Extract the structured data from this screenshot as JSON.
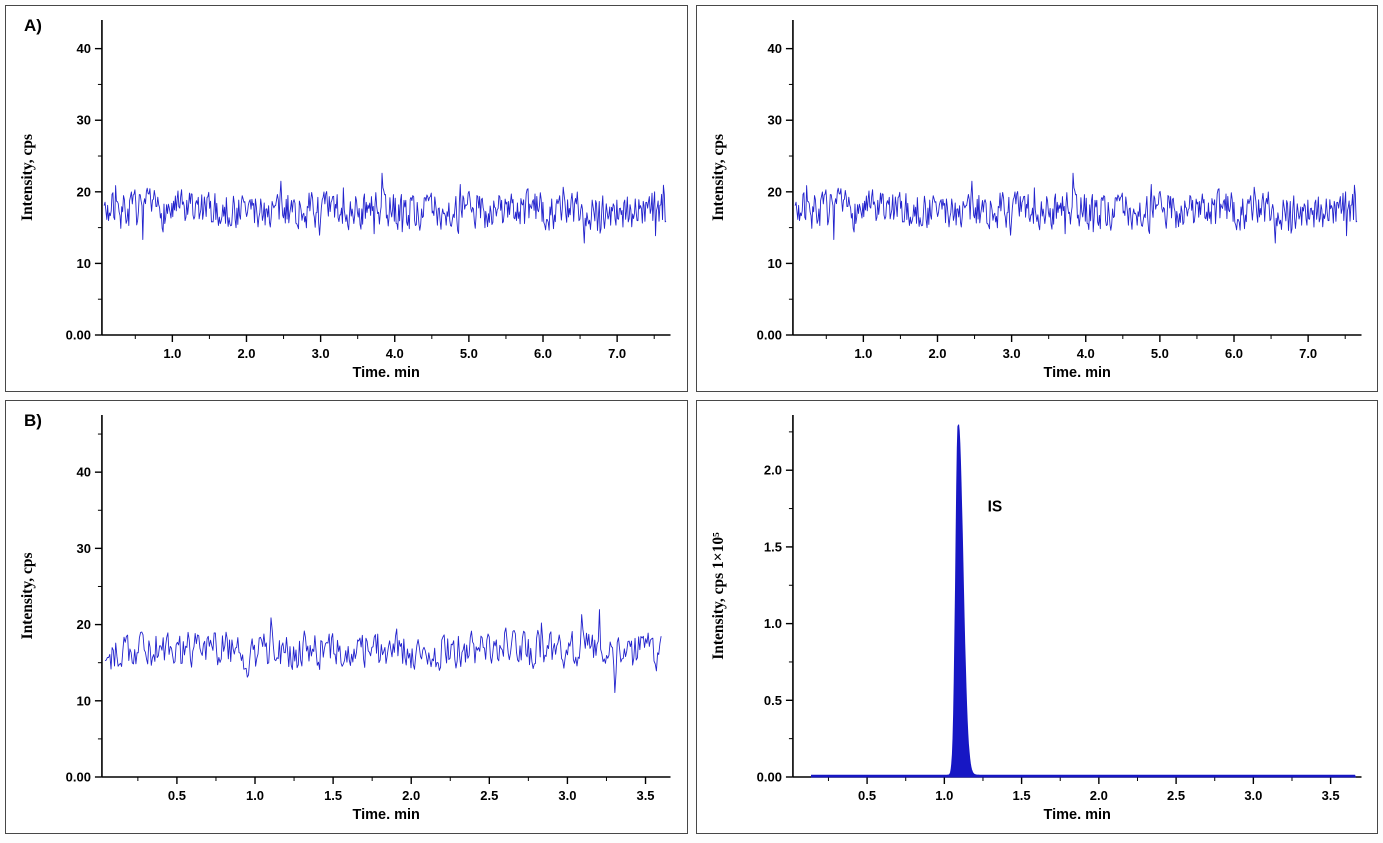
{
  "figure": {
    "description_labels": {
      "panel_a": "A)",
      "panel_b": "B)"
    }
  },
  "chart_data": [
    {
      "id": "blank-chromatogram-a-left",
      "type": "line",
      "panel_label": "A)",
      "xlabel": "Time. min",
      "ylabel": "Intensity, cps",
      "xlim": [
        0.05,
        7.72
      ],
      "ylim": [
        0,
        44
      ],
      "xticks": [
        1,
        2,
        3,
        4,
        5,
        6,
        7
      ],
      "xtick_labels": [
        "1.0",
        "2.0",
        "3.0",
        "4.0",
        "5.0",
        "6.0",
        "7.0"
      ],
      "yticks": [
        0,
        10,
        20,
        30,
        40
      ],
      "ytick_labels": [
        "0.00",
        "10",
        "20",
        "30",
        "40"
      ],
      "grid": false,
      "legend": "none",
      "line_color": "#2323cd",
      "axis_color": "#000000",
      "noise": {
        "seed": 7,
        "points": 640,
        "x_start": 0.08,
        "x_end": 7.66,
        "mean": 17.4,
        "amplitude": 3.4,
        "spike_chance": 0.08,
        "spike_scale": 9,
        "min": 9.3,
        "max": 27.2
      }
    },
    {
      "id": "blank-chromatogram-a-right",
      "type": "line",
      "panel_label": "",
      "xlabel": "Time. min",
      "ylabel": "Intensity, cps",
      "xlim": [
        0.05,
        7.72
      ],
      "ylim": [
        0,
        44
      ],
      "xticks": [
        1,
        2,
        3,
        4,
        5,
        6,
        7
      ],
      "xtick_labels": [
        "1.0",
        "2.0",
        "3.0",
        "4.0",
        "5.0",
        "6.0",
        "7.0"
      ],
      "yticks": [
        0,
        10,
        20,
        30,
        40
      ],
      "ytick_labels": [
        "0.00",
        "10",
        "20",
        "30",
        "40"
      ],
      "grid": false,
      "legend": "none",
      "line_color": "#2323cd",
      "axis_color": "#000000",
      "noise": {
        "seed": 7,
        "points": 640,
        "x_start": 0.08,
        "x_end": 7.66,
        "mean": 17.4,
        "amplitude": 3.4,
        "spike_chance": 0.08,
        "spike_scale": 9,
        "min": 9.3,
        "max": 27.2
      }
    },
    {
      "id": "blank-chromatogram-b-left",
      "type": "line",
      "panel_label": "B)",
      "xlabel": "Time. min",
      "ylabel": "Intensity, cps",
      "xlim": [
        0.02,
        3.66
      ],
      "ylim": [
        0,
        47.5
      ],
      "xticks": [
        0.5,
        1,
        1.5,
        2,
        2.5,
        3,
        3.5
      ],
      "xtick_labels": [
        "0.5",
        "1.0",
        "1.5",
        "2.0",
        "2.5",
        "3.0",
        "3.5"
      ],
      "yticks": [
        0,
        10,
        20,
        30,
        40
      ],
      "ytick_labels": [
        "0.00",
        "10",
        "20",
        "30",
        "40"
      ],
      "grid": false,
      "legend": "none",
      "line_color": "#2323cd",
      "axis_color": "#000000",
      "noise": {
        "seed": 29,
        "points": 470,
        "x_start": 0.04,
        "x_end": 3.6,
        "mean": 16.6,
        "amplitude": 3.3,
        "spike_chance": 0.08,
        "spike_scale": 9,
        "min": 8.8,
        "max": 26.5
      }
    },
    {
      "id": "internal-standard-peak",
      "type": "area",
      "panel_label": "",
      "xlabel": "Time. min",
      "ylabel": "Intensity, cps 1×10⁵",
      "xlim": [
        0.02,
        3.7
      ],
      "ylim": [
        0,
        2.36
      ],
      "xticks": [
        0.5,
        1,
        1.5,
        2,
        2.5,
        3,
        3.5
      ],
      "xtick_labels": [
        "0.5",
        "1.0",
        "1.5",
        "2.0",
        "2.5",
        "3.0",
        "3.5"
      ],
      "yticks": [
        0,
        0.5,
        1,
        1.5,
        2
      ],
      "ytick_labels": [
        "0.00",
        "0.5",
        "1.0",
        "1.5",
        "2.0"
      ],
      "grid": false,
      "legend": "none",
      "line_color": "#1717c4",
      "fill_color": "#1717c4",
      "axis_color": "#000000",
      "peak": {
        "center": 1.09,
        "height": 2.29,
        "sigma_left": 0.016,
        "sigma_right": 0.03,
        "baseline": 0.012,
        "x_start": 0.14,
        "x_end": 3.66
      },
      "annotation": {
        "text": "IS",
        "x": 1.28,
        "y": 1.73
      }
    }
  ]
}
